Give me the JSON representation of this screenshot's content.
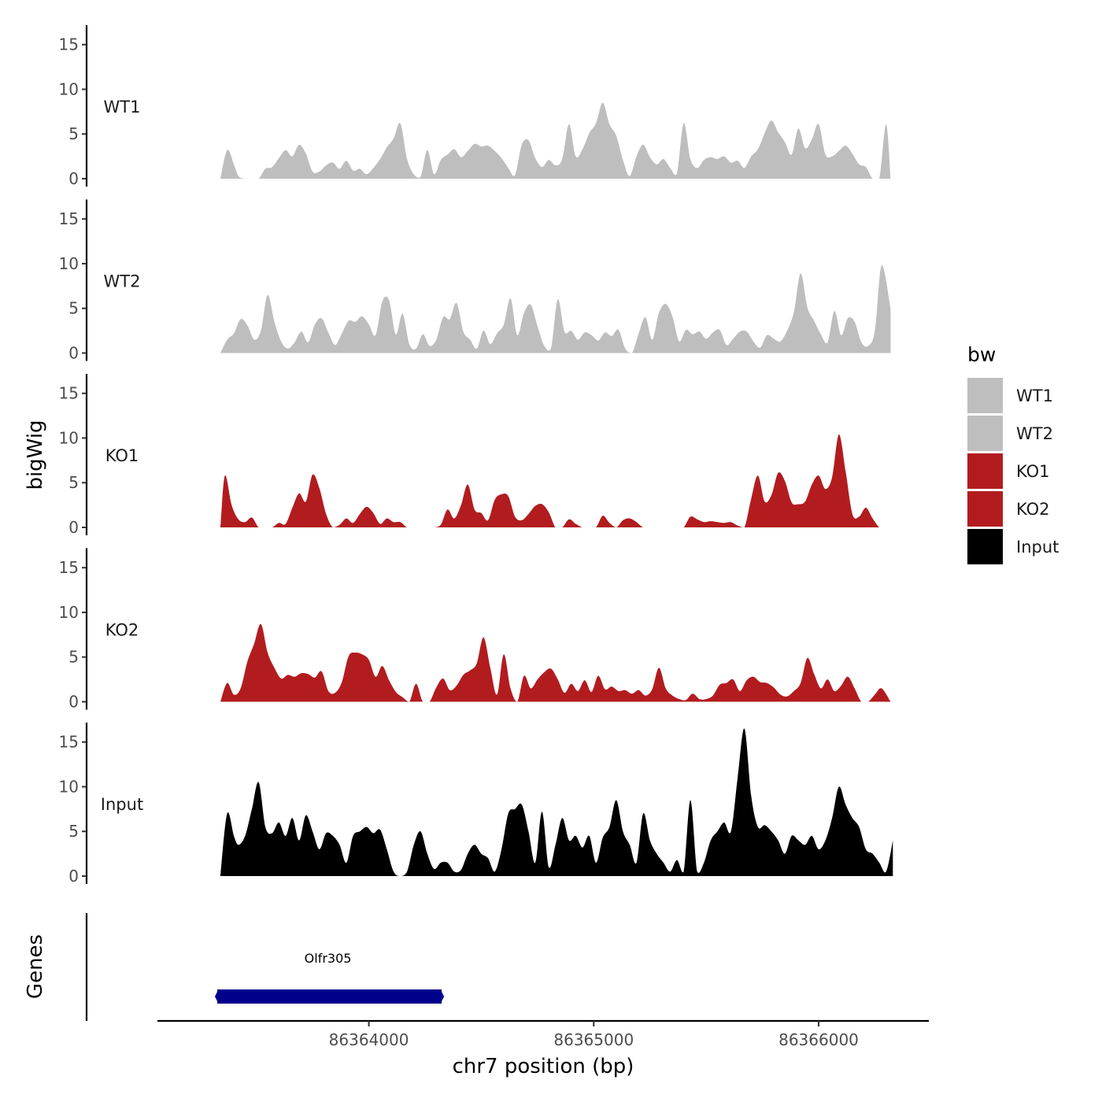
{
  "chart_data": {
    "type": "area",
    "ylabel": "bigWig",
    "xlabel": "chr7 position (bp)",
    "xlim": [
      86363060,
      86366490
    ],
    "ylim": [
      0,
      17
    ],
    "y_ticks": [
      0,
      5,
      10,
      15
    ],
    "y_tick_labels": [
      "0",
      "5",
      "10",
      "15"
    ],
    "x_ticks": [
      86364000,
      86365000,
      86366000
    ],
    "x_tick_labels": [
      "86364000",
      "86365000",
      "86366000"
    ],
    "legend": {
      "title": "bw",
      "position": "right",
      "entries": [
        {
          "label": "WT1",
          "color": "#bebebe"
        },
        {
          "label": "WT2",
          "color": "#bebebe"
        },
        {
          "label": "KO1",
          "color": "#b21c1f"
        },
        {
          "label": "KO2",
          "color": "#b21c1f"
        },
        {
          "label": "Input",
          "color": "#000000"
        }
      ]
    },
    "series": [
      {
        "name": "WT1",
        "color": "#bebebe",
        "x": [
          86363340,
          86363370,
          86363400,
          86363420,
          86363450,
          86363480,
          86363510,
          86363540,
          86363570,
          86363600,
          86363630,
          86363660,
          86363690,
          86363720,
          86363750,
          86363780,
          86363810,
          86363840,
          86363870,
          86363900,
          86363930,
          86363960,
          86363990,
          86364020,
          86364050,
          86364080,
          86364110,
          86364140,
          86364170,
          86364200,
          86364230,
          86364260,
          86364290,
          86364320,
          86364350,
          86364380,
          86364410,
          86364440,
          86364470,
          86364500,
          86364530,
          86364560,
          86364590,
          86364620,
          86364650,
          86364680,
          86364710,
          86364740,
          86364770,
          86364800,
          86364830,
          86364860,
          86364890,
          86364920,
          86364950,
          86364980,
          86365010,
          86365040,
          86365070,
          86365100,
          86365130,
          86365160,
          86365190,
          86365220,
          86365250,
          86365280,
          86365310,
          86365340,
          86365370,
          86365400,
          86365430,
          86365460,
          86365490,
          86365520,
          86365550,
          86365580,
          86365610,
          86365640,
          86365670,
          86365700,
          86365730,
          86365760,
          86365790,
          86365820,
          86365850,
          86365880,
          86365910,
          86365940,
          86365970,
          86366000,
          86366030,
          86366060,
          86366090,
          86366120,
          86366150,
          86366180,
          86366210,
          86366240,
          86366270,
          86366300,
          86366320
        ],
        "values": [
          0,
          3.2,
          1.6,
          0.3,
          0,
          0,
          0,
          1.1,
          1.3,
          2.3,
          3.2,
          2.5,
          3.8,
          2.8,
          0.8,
          0.8,
          1.5,
          1.8,
          1.1,
          2.0,
          0.9,
          1.1,
          0.5,
          1.2,
          2.2,
          3.5,
          4.5,
          6.2,
          2.2,
          0.5,
          0.2,
          3.2,
          0.5,
          2.1,
          2.7,
          3.3,
          2.4,
          3.1,
          3.9,
          3.6,
          3.7,
          3.1,
          2.3,
          1.2,
          0.4,
          3.8,
          4.3,
          2.3,
          1.3,
          2.1,
          1.5,
          2.2,
          6.1,
          2.5,
          3.3,
          5.1,
          6.2,
          8.5,
          6.1,
          4.8,
          2.1,
          0.3,
          2.5,
          3.8,
          2.4,
          1.6,
          2.2,
          1.2,
          0.6,
          6.2,
          2.2,
          1.2,
          2.1,
          2.4,
          2.2,
          2.5,
          1.8,
          2.0,
          1.2,
          2.5,
          3.3,
          5.1,
          6.5,
          5.2,
          4.1,
          2.7,
          5.6,
          3.4,
          4.4,
          6.1,
          2.7,
          2.5,
          3.1,
          3.7,
          2.8,
          1.6,
          1.3,
          0,
          0,
          6.1,
          0
        ]
      },
      {
        "name": "WT2",
        "color": "#bebebe",
        "x": [
          86363340,
          86363370,
          86363400,
          86363430,
          86363460,
          86363490,
          86363520,
          86363550,
          86363580,
          86363610,
          86363640,
          86363670,
          86363700,
          86363730,
          86363760,
          86363790,
          86363820,
          86363850,
          86363880,
          86363910,
          86363940,
          86363970,
          86364000,
          86364030,
          86364060,
          86364090,
          86364120,
          86364150,
          86364180,
          86364210,
          86364240,
          86364270,
          86364300,
          86364330,
          86364360,
          86364390,
          86364420,
          86364450,
          86364480,
          86364510,
          86364540,
          86364570,
          86364600,
          86364630,
          86364660,
          86364690,
          86364720,
          86364750,
          86364780,
          86364810,
          86364840,
          86364870,
          86364900,
          86364930,
          86364960,
          86364990,
          86365020,
          86365050,
          86365080,
          86365110,
          86365140,
          86365170,
          86365200,
          86365230,
          86365260,
          86365290,
          86365320,
          86365350,
          86365380,
          86365410,
          86365440,
          86365470,
          86365500,
          86365530,
          86365560,
          86365590,
          86365620,
          86365650,
          86365680,
          86365710,
          86365740,
          86365770,
          86365800,
          86365830,
          86365860,
          86365890,
          86365920,
          86365950,
          86365980,
          86366010,
          86366040,
          86366070,
          86366100,
          86366130,
          86366160,
          86366190,
          86366220,
          86366250,
          86366280,
          86366320
        ],
        "values": [
          0,
          1.5,
          2.2,
          3.8,
          3.1,
          1.5,
          2.5,
          6.5,
          3.5,
          1.3,
          0.5,
          1.2,
          2.4,
          1.2,
          3.2,
          3.9,
          2.3,
          0.9,
          2.2,
          3.6,
          3.5,
          4.1,
          3.2,
          2.0,
          5.8,
          5.9,
          2.1,
          4.4,
          1.0,
          0.5,
          2.1,
          0.8,
          1.5,
          4.0,
          3.8,
          5.6,
          2.4,
          1.5,
          0.5,
          2.5,
          1.0,
          2.2,
          3.2,
          6.1,
          2.0,
          4.5,
          5.4,
          3.0,
          0.8,
          0.5,
          6.0,
          2.4,
          2.5,
          1.5,
          2.3,
          2.0,
          1.4,
          2.3,
          1.9,
          2.6,
          0.5,
          0,
          2.2,
          4.0,
          1.5,
          4.5,
          5.5,
          4.1,
          1.3,
          2.6,
          2.1,
          2.4,
          1.6,
          2.3,
          2.6,
          0.9,
          1.6,
          2.4,
          2.4,
          1.3,
          0.6,
          2.0,
          1.6,
          1.3,
          2.5,
          4.6,
          8.9,
          5.1,
          3.6,
          2.1,
          1.2,
          4.7,
          2.0,
          3.9,
          3.5,
          1.2,
          0.8,
          2.5,
          9.8,
          5.0
        ]
      },
      {
        "name": "KO1",
        "color": "#b21c1f",
        "x": [
          86363340,
          86363360,
          86363390,
          86363420,
          86363450,
          86363480,
          86363510,
          86363540,
          86363570,
          86363600,
          86363630,
          86363660,
          86363690,
          86363720,
          86363750,
          86363780,
          86363810,
          86363840,
          86363870,
          86363900,
          86363930,
          86363960,
          86363990,
          86364020,
          86364050,
          86364080,
          86364110,
          86364140,
          86364170,
          86364200,
          86364230,
          86364260,
          86364290,
          86364320,
          86364350,
          86364380,
          86364410,
          86364440,
          86364470,
          86364500,
          86364530,
          86364560,
          86364590,
          86364620,
          86364650,
          86364680,
          86364710,
          86364740,
          86364770,
          86364800,
          86364830,
          86364860,
          86364890,
          86364920,
          86364950,
          86364980,
          86365010,
          86365040,
          86365070,
          86365100,
          86365130,
          86365160,
          86365190,
          86365220,
          86365250,
          86365280,
          86365310,
          86365340,
          86365370,
          86365400,
          86365430,
          86365460,
          86365490,
          86365520,
          86365550,
          86365580,
          86365610,
          86365640,
          86365670,
          86365700,
          86365730,
          86365760,
          86365790,
          86365820,
          86365850,
          86365880,
          86365910,
          86365940,
          86365970,
          86366000,
          86366030,
          86366060,
          86366090,
          86366120,
          86366150,
          86366180,
          86366210,
          86366240,
          86366270,
          86366290
        ],
        "values": [
          0,
          5.8,
          2.5,
          0.9,
          0.6,
          1.1,
          0,
          0,
          0,
          0.5,
          0.4,
          2.2,
          3.8,
          2.9,
          5.9,
          4.4,
          1.5,
          0,
          0.3,
          1.0,
          0.5,
          1.5,
          2.3,
          1.6,
          0.4,
          1.0,
          0.6,
          0.6,
          0,
          0,
          0,
          0,
          0,
          0.3,
          2.0,
          1.0,
          2.5,
          4.8,
          2.0,
          1.6,
          0.8,
          3.1,
          3.7,
          3.5,
          1.2,
          0.8,
          1.5,
          2.4,
          2.6,
          1.7,
          0,
          0,
          0.9,
          0.4,
          0,
          0,
          0,
          1.3,
          0.5,
          0,
          0.8,
          1.0,
          0.6,
          0,
          0,
          0,
          0,
          0,
          0,
          0,
          1.2,
          0.9,
          0.6,
          0.7,
          0.6,
          0.5,
          0.6,
          0.2,
          0,
          3.2,
          5.8,
          2.9,
          3.6,
          6.1,
          5.2,
          2.8,
          2.6,
          2.9,
          4.8,
          5.8,
          4.3,
          5.6,
          10.4,
          6.3,
          1.5,
          1.2,
          2.2,
          1.0,
          0,
          0
        ]
      },
      {
        "name": "KO2",
        "color": "#b21c1f",
        "x": [
          86363340,
          86363370,
          86363400,
          86363430,
          86363460,
          86363490,
          86363520,
          86363550,
          86363580,
          86363610,
          86363640,
          86363670,
          86363700,
          86363730,
          86363760,
          86363790,
          86363820,
          86363850,
          86363880,
          86363910,
          86363940,
          86363970,
          86364000,
          86364030,
          86364060,
          86364090,
          86364120,
          86364150,
          86364180,
          86364210,
          86364240,
          86364270,
          86364300,
          86364330,
          86364360,
          86364390,
          86364420,
          86364450,
          86364480,
          86364510,
          86364540,
          86364570,
          86364600,
          86364630,
          86364660,
          86364690,
          86364720,
          86364750,
          86364780,
          86364810,
          86364840,
          86364870,
          86364900,
          86364930,
          86364960,
          86364990,
          86365020,
          86365050,
          86365080,
          86365110,
          86365140,
          86365170,
          86365200,
          86365230,
          86365260,
          86365290,
          86365320,
          86365350,
          86365380,
          86365410,
          86365440,
          86365470,
          86365500,
          86365530,
          86365560,
          86365590,
          86365620,
          86365650,
          86365680,
          86365710,
          86365740,
          86365770,
          86365800,
          86365830,
          86365860,
          86365890,
          86365920,
          86365950,
          86365980,
          86366010,
          86366040,
          86366070,
          86366100,
          86366130,
          86366160,
          86366190,
          86366220,
          86366250,
          86366280,
          86366320
        ],
        "values": [
          0,
          2.1,
          0.8,
          1.5,
          4.5,
          6.5,
          8.7,
          5.5,
          3.8,
          2.6,
          3.0,
          2.8,
          3.2,
          3.1,
          2.7,
          3.4,
          1.2,
          1.0,
          2.2,
          5.1,
          5.5,
          5.3,
          4.7,
          2.8,
          4.0,
          2.4,
          1.1,
          0.5,
          0,
          2.0,
          0,
          0,
          1.6,
          2.6,
          1.3,
          1.8,
          3.0,
          3.5,
          4.3,
          7.2,
          3.8,
          0.8,
          5.3,
          1.5,
          0,
          2.9,
          1.5,
          2.5,
          3.3,
          3.7,
          2.5,
          1.0,
          2.0,
          1.2,
          2.4,
          1.1,
          2.9,
          1.4,
          1.7,
          1.2,
          1.3,
          0.9,
          1.3,
          0.7,
          1.4,
          3.8,
          1.5,
          0.7,
          0.3,
          0.2,
          0.9,
          0.3,
          0.3,
          0.7,
          1.9,
          2.1,
          2.5,
          1.2,
          2.4,
          2.8,
          2.2,
          2.1,
          1.6,
          0.8,
          0.6,
          1.2,
          2.1,
          4.9,
          3.1,
          1.5,
          2.5,
          1.2,
          1.8,
          2.8,
          1.5,
          0,
          0,
          0.8,
          1.5,
          0
        ]
      },
      {
        "name": "Input",
        "color": "#000000",
        "x": [
          86363340,
          86363370,
          86363400,
          86363420,
          86363450,
          86363480,
          86363510,
          86363540,
          86363570,
          86363600,
          86363630,
          86363660,
          86363690,
          86363720,
          86363750,
          86363780,
          86363810,
          86363840,
          86363870,
          86363900,
          86363930,
          86363960,
          86363990,
          86364020,
          86364050,
          86364080,
          86364110,
          86364140,
          86364170,
          86364200,
          86364230,
          86364260,
          86364290,
          86364320,
          86364350,
          86364380,
          86364410,
          86364440,
          86364470,
          86364500,
          86364530,
          86364560,
          86364590,
          86364620,
          86364650,
          86364680,
          86364710,
          86364740,
          86364770,
          86364800,
          86364830,
          86364860,
          86364890,
          86364920,
          86364950,
          86364980,
          86365010,
          86365040,
          86365070,
          86365100,
          86365130,
          86365160,
          86365190,
          86365220,
          86365250,
          86365280,
          86365310,
          86365340,
          86365370,
          86365400,
          86365430,
          86365460,
          86365490,
          86365520,
          86365550,
          86365580,
          86365610,
          86365640,
          86365670,
          86365700,
          86365730,
          86365760,
          86365790,
          86365820,
          86365850,
          86365880,
          86365910,
          86365940,
          86365970,
          86366000,
          86366030,
          86366060,
          86366090,
          86366120,
          86366150,
          86366180,
          86366210,
          86366240,
          86366270,
          86366300,
          86366330
        ],
        "values": [
          0,
          7.0,
          4.5,
          3.5,
          4.5,
          7.5,
          10.5,
          5.5,
          4.8,
          6.0,
          4.5,
          6.5,
          4.0,
          6.8,
          5.0,
          3.0,
          4.8,
          4.5,
          3.5,
          1.5,
          4.5,
          5.0,
          5.5,
          4.8,
          5.2,
          3.0,
          0.5,
          0,
          0.5,
          3.5,
          5.0,
          2.5,
          0.8,
          1.5,
          1.5,
          0.5,
          0.7,
          2.5,
          3.5,
          2.5,
          2.0,
          0.5,
          3.0,
          7.0,
          7.5,
          8.0,
          5.0,
          1.5,
          7.2,
          1.0,
          3.5,
          6.5,
          4.0,
          4.5,
          3.2,
          4.5,
          1.5,
          4.3,
          5.5,
          8.5,
          5.0,
          3.5,
          1.5,
          7.0,
          4.0,
          2.5,
          1.5,
          0.5,
          1.8,
          0.5,
          8.5,
          0.5,
          1.5,
          4.0,
          5.0,
          6.0,
          5.0,
          11.0,
          16.5,
          9.0,
          5.5,
          5.7,
          5.0,
          4.0,
          2.5,
          4.5,
          4.0,
          3.5,
          4.5,
          3.0,
          4.0,
          6.5,
          10.0,
          8.0,
          6.5,
          5.5,
          3.0,
          2.5,
          1.5,
          0.5,
          4.0
        ]
      }
    ],
    "genes": [
      {
        "name": "Olfr305",
        "start": 86363340,
        "end": 86364310,
        "color": "#00008b"
      }
    ],
    "gene_track_label": "Genes"
  }
}
